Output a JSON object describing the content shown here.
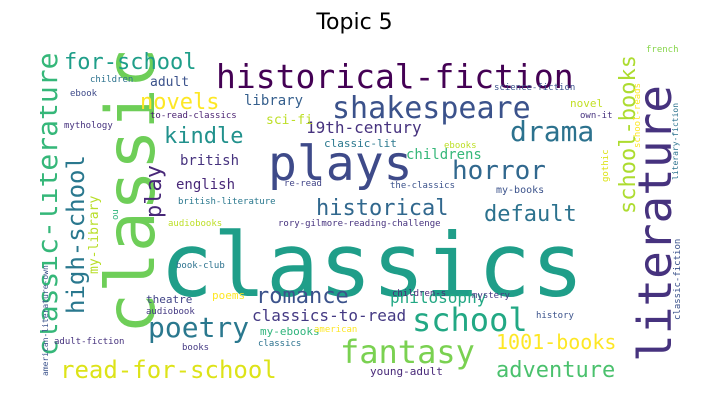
{
  "title": "Topic 5",
  "words": [
    {
      "text": "classics",
      "color": "#1f9e89"
    },
    {
      "text": "classic",
      "color": "#6ece58"
    },
    {
      "text": "plays",
      "color": "#3e4a89"
    },
    {
      "text": "literature",
      "color": "#46327e"
    },
    {
      "text": "historical-fiction",
      "color": "#440154"
    },
    {
      "text": "shakespeare",
      "color": "#3b528b"
    },
    {
      "text": "drama",
      "color": "#2c728e"
    },
    {
      "text": "horror",
      "color": "#31688e"
    },
    {
      "text": "school",
      "color": "#22a884"
    },
    {
      "text": "fantasy",
      "color": "#7ad151"
    },
    {
      "text": "classic-literature",
      "color": "#35b779"
    },
    {
      "text": "high-school",
      "color": "#2a788e"
    },
    {
      "text": "school-books",
      "color": "#addc30"
    },
    {
      "text": "poetry",
      "color": "#2a788e"
    },
    {
      "text": "romance",
      "color": "#3b528b"
    },
    {
      "text": "historical",
      "color": "#31688e"
    },
    {
      "text": "default",
      "color": "#2c728e"
    },
    {
      "text": "read-for-school",
      "color": "#dde318"
    },
    {
      "text": "adventure",
      "color": "#4ac16d"
    },
    {
      "text": "1001-books",
      "color": "#fde725"
    },
    {
      "text": "kindle",
      "color": "#21918c"
    },
    {
      "text": "novels",
      "color": "#fde725"
    },
    {
      "text": "for-school",
      "color": "#1f9e89"
    },
    {
      "text": "play",
      "color": "#482878"
    },
    {
      "text": "philosophy",
      "color": "#22a884"
    },
    {
      "text": "classics-to-read",
      "color": "#443983"
    },
    {
      "text": "19th-century",
      "color": "#46327e"
    },
    {
      "text": "childrens",
      "color": "#35b779"
    },
    {
      "text": "library",
      "color": "#355f8d"
    },
    {
      "text": "british",
      "color": "#46327e"
    },
    {
      "text": "english",
      "color": "#482878"
    },
    {
      "text": "adult",
      "color": "#3b528b"
    },
    {
      "text": "sci-fi",
      "color": "#bddf26"
    },
    {
      "text": "classic-lit",
      "color": "#2a788e"
    },
    {
      "text": "my-library",
      "color": "#b8de29"
    },
    {
      "text": "theatre",
      "color": "#414487"
    },
    {
      "text": "audiobook",
      "color": "#443983"
    },
    {
      "text": "poems",
      "color": "#fde725"
    },
    {
      "text": "my-ebooks",
      "color": "#2fb47c"
    },
    {
      "text": "young-adult",
      "color": "#482878"
    },
    {
      "text": "novel",
      "color": "#c2df23"
    },
    {
      "text": "gothic",
      "color": "#dde318"
    },
    {
      "text": "my-books",
      "color": "#3b528b"
    },
    {
      "text": "ebooks",
      "color": "#bddf26"
    },
    {
      "text": "children",
      "color": "#2c728e"
    },
    {
      "text": "ebook",
      "color": "#3e4a89"
    },
    {
      "text": "mythology",
      "color": "#46327e"
    },
    {
      "text": "to-read-classics",
      "color": "#481f70"
    },
    {
      "text": "science-fiction",
      "color": "#3b528b"
    },
    {
      "text": "school-reads",
      "color": "#fde725"
    },
    {
      "text": "literary-fiction",
      "color": "#2c728e"
    },
    {
      "text": "own-it",
      "color": "#46327e"
    },
    {
      "text": "french",
      "color": "#86d549"
    },
    {
      "text": "re-read",
      "color": "#414487"
    },
    {
      "text": "the-classics",
      "color": "#3b528b"
    },
    {
      "text": "british-literature",
      "color": "#2a788e"
    },
    {
      "text": "rory-gilmore-reading-challenge",
      "color": "#46327e"
    },
    {
      "text": "audiobooks",
      "color": "#bddf26"
    },
    {
      "text": "book-club",
      "color": "#2c728e"
    },
    {
      "text": "children-s",
      "color": "#482878"
    },
    {
      "text": "mystery",
      "color": "#443983"
    },
    {
      "text": "history",
      "color": "#3b528b"
    },
    {
      "text": "american",
      "color": "#fde725"
    },
    {
      "text": "classics",
      "color": "#2c728e"
    },
    {
      "text": "books",
      "color": "#443983"
    },
    {
      "text": "adult-fiction",
      "color": "#46327e"
    },
    {
      "text": "american-literature",
      "color": "#fde725"
    },
    {
      "text": "english-literature",
      "color": "#b8de29"
    },
    {
      "text": "american-literature-own",
      "color": "#3b528b"
    },
    {
      "text": "ou",
      "color": "#2fb47c"
    },
    {
      "text": "classic-fiction",
      "color": "#3b528b"
    }
  ]
}
